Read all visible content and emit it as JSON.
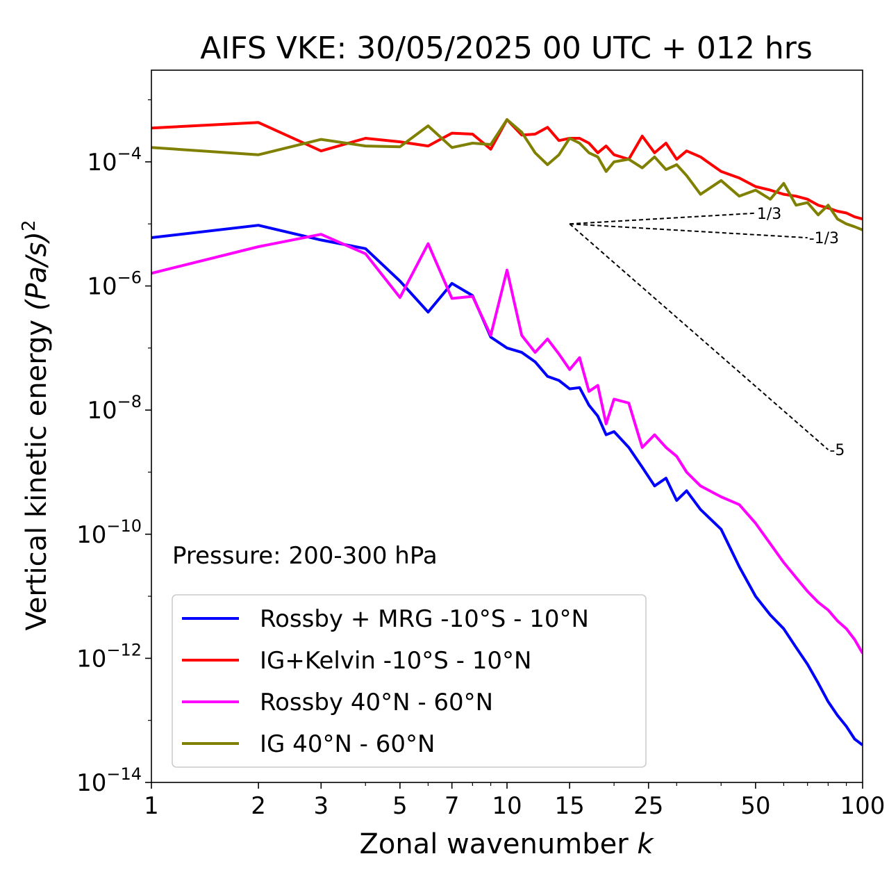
{
  "chart_data": {
    "type": "line",
    "title": "AIFS VKE: 30/05/2025 00 UTC + 012 hrs",
    "xlabel": "Zonal wavenumber",
    "xlabel_var": "k",
    "ylabel": "Vertical kinetic energy",
    "ylabel_unit": "(Pa/s)",
    "ylabel_exp": "2",
    "xscale": "log",
    "yscale": "log",
    "xlim": [
      1,
      100
    ],
    "ylim": [
      1e-14,
      0.003
    ],
    "xticks": [
      1,
      2,
      3,
      5,
      7,
      10,
      15,
      25,
      50,
      100
    ],
    "xtick_labels": [
      "1",
      "2",
      "3",
      "5",
      "7",
      "10",
      "15",
      "25",
      "50",
      "100"
    ],
    "yticks": [
      {
        "value": 0.0001,
        "base": "10",
        "exp": "−4"
      },
      {
        "value": 1e-06,
        "base": "10",
        "exp": "−6"
      },
      {
        "value": 1e-08,
        "base": "10",
        "exp": "−8"
      },
      {
        "value": 1e-10,
        "base": "10",
        "exp": "−10"
      },
      {
        "value": 1e-12,
        "base": "10",
        "exp": "−12"
      },
      {
        "value": 1e-14,
        "base": "10",
        "exp": "−14"
      }
    ],
    "annotation": "Pressure: 200-300 hPa",
    "legend_position": "lower-left",
    "grid": false,
    "reference_lines": [
      {
        "label": "1/3",
        "x": [
          15,
          50
        ],
        "y": [
          1e-05,
          1.49e-05
        ]
      },
      {
        "label": "-1/3",
        "x": [
          15,
          70
        ],
        "y": [
          1e-05,
          5.98e-06
        ]
      },
      {
        "label": "-5",
        "x": [
          15,
          80
        ],
        "y": [
          1e-05,
          2.3e-09
        ]
      }
    ],
    "series": [
      {
        "name": "Rossby + MRG -10°S - 10°N",
        "color": "#0000ff",
        "x": [
          1,
          2,
          3,
          4,
          5,
          6,
          7,
          8,
          9,
          10,
          11,
          12,
          13,
          14,
          15,
          16,
          17,
          18,
          19,
          20,
          22,
          24,
          26,
          28,
          30,
          32,
          35,
          40,
          45,
          50,
          55,
          60,
          65,
          70,
          75,
          80,
          85,
          90,
          95,
          100
        ],
        "y": [
          6e-06,
          9.5e-06,
          5.5e-06,
          4e-06,
          1.2e-06,
          3.8e-07,
          1.1e-06,
          7e-07,
          1.5e-07,
          1e-07,
          8.5e-08,
          6e-08,
          3.5e-08,
          3e-08,
          2.2e-08,
          2.3e-08,
          1.2e-08,
          8e-09,
          4e-09,
          4.5e-09,
          2.5e-09,
          1.2e-09,
          6e-10,
          8e-10,
          3.5e-10,
          5e-10,
          2.5e-10,
          1.2e-10,
          3e-11,
          1e-11,
          5e-12,
          3e-12,
          1.5e-12,
          8e-13,
          4e-13,
          2e-13,
          1.2e-13,
          8e-14,
          5e-14,
          4e-14
        ]
      },
      {
        "name": "IG+Kelvin -10°S - 10°N",
        "color": "#ff0000",
        "x": [
          1,
          2,
          3,
          4,
          5,
          6,
          7,
          8,
          9,
          10,
          11,
          12,
          13,
          14,
          15,
          16,
          17,
          18,
          19,
          20,
          22,
          24,
          26,
          28,
          30,
          32,
          35,
          40,
          45,
          50,
          55,
          60,
          65,
          70,
          75,
          80,
          85,
          90,
          95,
          100
        ],
        "y": [
          0.00035,
          0.00043,
          0.00015,
          0.00024,
          0.00021,
          0.00018,
          0.00029,
          0.00028,
          0.00016,
          0.00048,
          0.00027,
          0.00028,
          0.00036,
          0.00022,
          0.00024,
          0.00024,
          0.0002,
          0.00014,
          0.00018,
          0.00013,
          0.00011,
          0.00026,
          0.00014,
          0.0002,
          0.00011,
          0.00015,
          0.00012,
          7e-05,
          5.5e-05,
          4e-05,
          3.5e-05,
          3e-05,
          2.8e-05,
          2.5e-05,
          2e-05,
          1.8e-05,
          1.6e-05,
          1.5e-05,
          1.3e-05,
          1.2e-05
        ]
      },
      {
        "name": "Rossby 40°N - 60°N",
        "color": "#ff00ff",
        "x": [
          1,
          2,
          3,
          4,
          5,
          6,
          7,
          8,
          9,
          10,
          11,
          12,
          13,
          14,
          15,
          16,
          17,
          18,
          19,
          20,
          22,
          24,
          26,
          28,
          30,
          32,
          35,
          40,
          45,
          50,
          55,
          60,
          65,
          70,
          75,
          80,
          85,
          90,
          95,
          100
        ],
        "y": [
          1.6e-06,
          4.3e-06,
          6.8e-06,
          3.3e-06,
          6.5e-07,
          4.8e-06,
          6.3e-07,
          6.8e-07,
          1.6e-07,
          1.8e-06,
          1.6e-07,
          8.5e-08,
          1.4e-07,
          8e-08,
          4.5e-08,
          7e-08,
          2e-08,
          2.5e-08,
          6e-09,
          1.5e-08,
          1.3e-08,
          2.5e-09,
          4e-09,
          2.5e-09,
          1.8e-09,
          1e-09,
          6e-10,
          4e-10,
          3e-10,
          1.5e-10,
          7e-11,
          3.5e-11,
          2e-11,
          1.2e-11,
          8e-12,
          6e-12,
          4e-12,
          3e-12,
          2e-12,
          1.2e-12
        ]
      },
      {
        "name": "IG 40°N - 60°N",
        "color": "#808000",
        "x": [
          1,
          2,
          3,
          4,
          5,
          6,
          7,
          8,
          9,
          10,
          11,
          12,
          13,
          14,
          15,
          16,
          17,
          18,
          19,
          20,
          22,
          24,
          26,
          28,
          30,
          32,
          35,
          40,
          45,
          50,
          55,
          60,
          65,
          70,
          75,
          80,
          85,
          90,
          95,
          100
        ],
        "y": [
          0.00017,
          0.00013,
          0.00023,
          0.00018,
          0.000175,
          0.00038,
          0.00017,
          0.0002,
          0.00019,
          0.00048,
          0.0003,
          0.00014,
          9e-05,
          0.00013,
          0.00024,
          0.0002,
          0.00014,
          0.00012,
          7e-05,
          0.0001,
          0.00011,
          8e-05,
          0.00012,
          7.5e-05,
          9e-05,
          6e-05,
          3e-05,
          5e-05,
          2.8e-05,
          3.5e-05,
          2.5e-05,
          4.5e-05,
          2e-05,
          2.2e-05,
          1.4e-05,
          2e-05,
          1.2e-05,
          1e-05,
          9e-06,
          8e-06
        ]
      }
    ]
  }
}
